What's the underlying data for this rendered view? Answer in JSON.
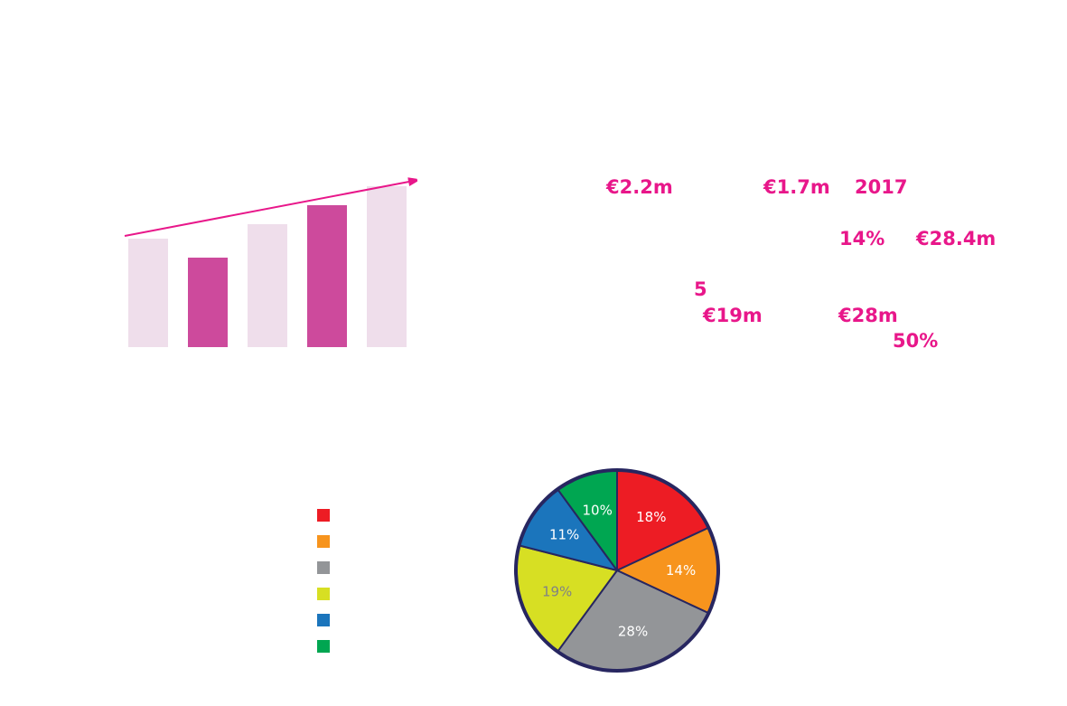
{
  "stats": [
    {
      "id": "stat-1",
      "text": "€2.2m"
    },
    {
      "id": "stat-2",
      "text": "€1.7m"
    },
    {
      "id": "stat-3",
      "text": "2017"
    },
    {
      "id": "stat-4",
      "text": "14%"
    },
    {
      "id": "stat-5",
      "text": "€28.4m"
    },
    {
      "id": "stat-6",
      "text": "5"
    },
    {
      "id": "stat-7",
      "text": "€19m"
    },
    {
      "id": "stat-8",
      "text": "€28m"
    },
    {
      "id": "stat-9",
      "text": "50%"
    }
  ],
  "colors": {
    "accent": "#e8178a",
    "bar_light": "#efdeeb",
    "bar_dark": "#cd4a9c",
    "pie_border": "#272660"
  },
  "chart_data": [
    {
      "type": "bar",
      "categories": [
        "",
        "",
        "",
        "",
        ""
      ],
      "values": [
        60,
        49.5,
        68,
        78.5,
        89
      ],
      "highlighted": [
        false,
        true,
        false,
        true,
        false
      ],
      "ylim": [
        0,
        100
      ],
      "trend_arrow": true,
      "grid": false
    },
    {
      "type": "pie",
      "values": [
        18,
        14,
        28,
        19,
        11,
        10
      ],
      "labels": [
        "18%",
        "14%",
        "28%",
        "19%",
        "11%",
        "10%"
      ],
      "colors": [
        "#ed1c24",
        "#f7941d",
        "#939598",
        "#d7df23",
        "#1b75bc",
        "#00a651"
      ],
      "label_colors": [
        "#ffffff",
        "#ffffff",
        "#ffffff",
        "#808285",
        "#ffffff",
        "#ffffff"
      ],
      "legend": {
        "placement": "left",
        "entries": [
          "",
          "",
          "",
          "",
          "",
          ""
        ]
      }
    }
  ]
}
